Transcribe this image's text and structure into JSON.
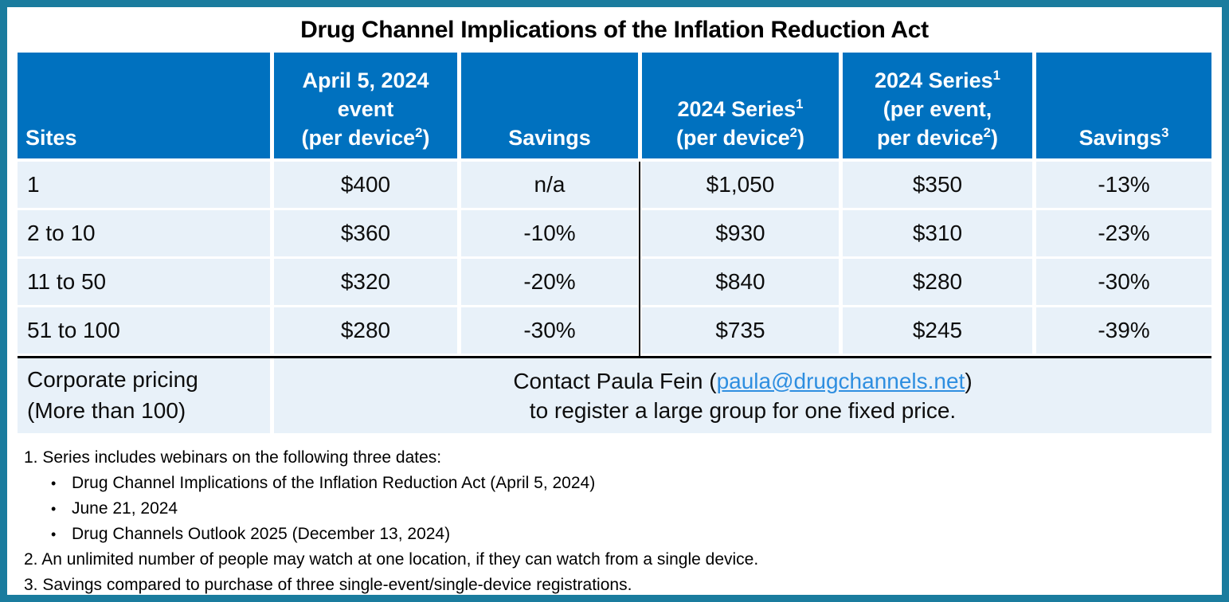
{
  "title": "Drug Channel Implications of the Inflation Reduction Act",
  "colors": {
    "header_bg": "#0071BF",
    "row_bg": "#E8F1F9",
    "frame_border": "#1A7C9E",
    "link": "#2E8EE0"
  },
  "table": {
    "header": {
      "sites": "Sites",
      "april": {
        "line1": "April 5, 2024",
        "line2": "event",
        "line3_pre": "(per device",
        "line3_sup": "2",
        "line3_post": ")"
      },
      "savings1": "Savings",
      "series_device": {
        "line1_pre": "2024 Series",
        "line1_sup": "1",
        "line2_pre": "(per device",
        "line2_sup": "2",
        "line2_post": ")"
      },
      "series_event": {
        "line1_pre": "2024 Series",
        "line1_sup": "1",
        "line2": "(per event,",
        "line3_pre": "per device",
        "line3_sup": "2",
        "line3_post": ")"
      },
      "savings3": {
        "pre": "Savings",
        "sup": "3"
      }
    },
    "rows": [
      {
        "sites": "1",
        "april": "$400",
        "savings1": "n/a",
        "series_device": "$1,050",
        "series_event": "$350",
        "savings3": "-13%"
      },
      {
        "sites": "2 to 10",
        "april": "$360",
        "savings1": "-10%",
        "series_device": "$930",
        "series_event": "$310",
        "savings3": "-23%"
      },
      {
        "sites": "11 to 50",
        "april": "$320",
        "savings1": "-20%",
        "series_device": "$840",
        "series_event": "$280",
        "savings3": "-30%"
      },
      {
        "sites": "51 to 100",
        "april": "$280",
        "savings1": "-30%",
        "series_device": "$735",
        "series_event": "$245",
        "savings3": "-39%"
      }
    ],
    "corporate": {
      "label_line1": "Corporate pricing",
      "label_line2": "(More than 100)",
      "contact_pre": "Contact Paula Fein (",
      "contact_email": "paula@drugchannels.net",
      "contact_post": ")",
      "contact_line2": "to register a large group for one fixed price."
    }
  },
  "footnotes": {
    "note1": "1. Series includes webinars on the following three dates:",
    "bullet_glyph": "•",
    "bullets": [
      "Drug Channel Implications of the Inflation Reduction Act (April 5, 2024)",
      "June 21, 2024",
      "Drug Channels Outlook 2025 (December 13, 2024)"
    ],
    "note2": "2. An unlimited number of people may watch at one location, if they can watch from a single device.",
    "note3": "3. Savings compared to purchase of three single-event/single-device registrations."
  }
}
